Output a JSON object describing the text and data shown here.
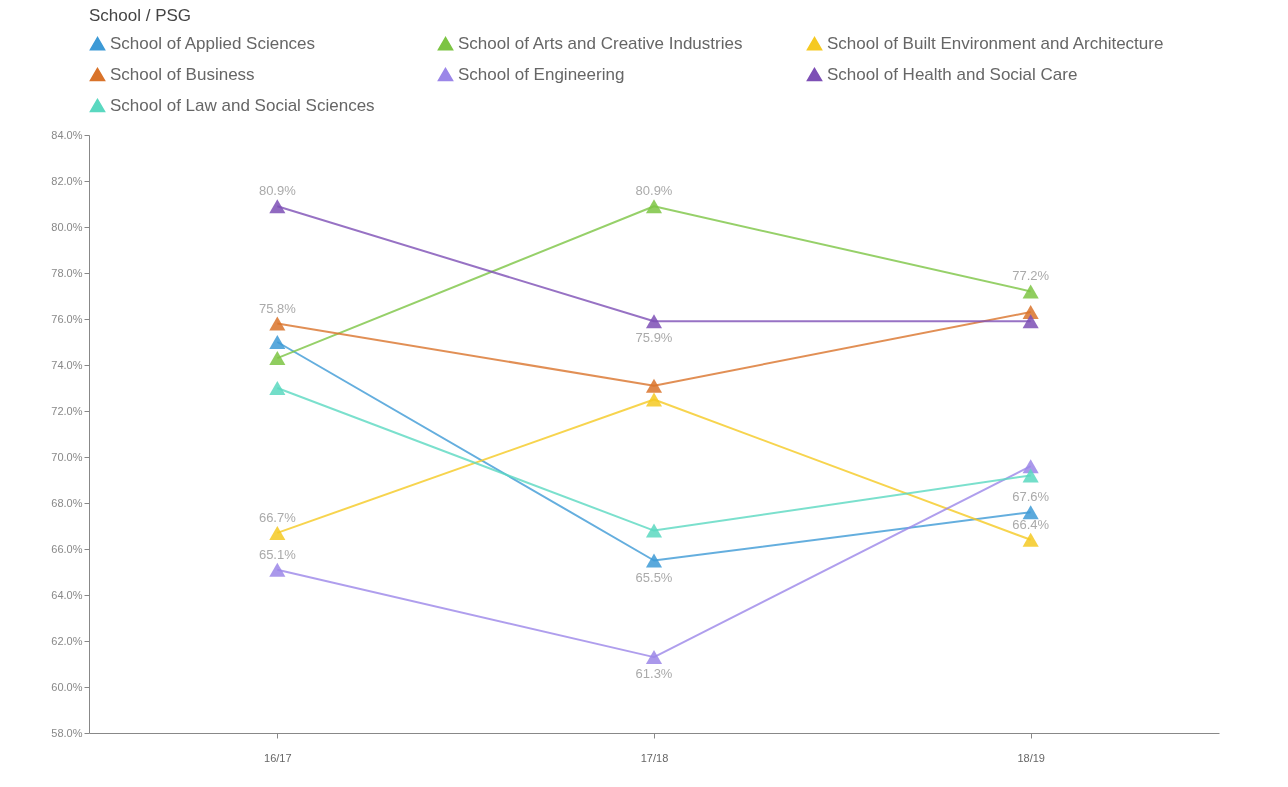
{
  "chart_data": {
    "type": "line",
    "legend_title": "School / PSG",
    "legend": "top",
    "marker": "triangle",
    "grid": false,
    "categories": [
      "16/17",
      "17/18",
      "18/19"
    ],
    "ylim": [
      58,
      84
    ],
    "yticks": [
      {
        "value": 58,
        "label": "58.0%"
      },
      {
        "value": 60,
        "label": "60.0%"
      },
      {
        "value": 62,
        "label": "62.0%"
      },
      {
        "value": 64,
        "label": "64.0%"
      },
      {
        "value": 66,
        "label": "66.0%"
      },
      {
        "value": 68,
        "label": "68.0%"
      },
      {
        "value": 70,
        "label": "70.0%"
      },
      {
        "value": 72,
        "label": "72.0%"
      },
      {
        "value": 74,
        "label": "74.0%"
      },
      {
        "value": 76,
        "label": "76.0%"
      },
      {
        "value": 78,
        "label": "78.0%"
      },
      {
        "value": 80,
        "label": "80.0%"
      },
      {
        "value": 82,
        "label": "82.0%"
      },
      {
        "value": 84,
        "label": "84.0%"
      }
    ],
    "series": [
      {
        "name": "School of Applied Sciences",
        "color": "#3d9ad6",
        "values": [
          75.0,
          65.5,
          67.6
        ],
        "value_labels": [
          null,
          "65.5%",
          "67.6%"
        ]
      },
      {
        "name": "School of Arts and Creative Industries",
        "color": "#7cc443",
        "values": [
          74.3,
          80.9,
          77.2
        ],
        "value_labels": [
          null,
          "80.9%",
          "77.2%"
        ]
      },
      {
        "name": "School of Built Environment and Architecture",
        "color": "#f5c922",
        "values": [
          66.7,
          72.5,
          66.4
        ],
        "value_labels": [
          "66.7%",
          null,
          "66.4%"
        ]
      },
      {
        "name": "School of Business",
        "color": "#d9732a",
        "values": [
          75.8,
          73.1,
          76.3
        ],
        "value_labels": [
          "75.8%",
          null,
          null
        ]
      },
      {
        "name": "School of Engineering",
        "color": "#9b86e8",
        "values": [
          65.1,
          61.3,
          69.6
        ],
        "value_labels": [
          "65.1%",
          "61.3%",
          null
        ]
      },
      {
        "name": "School of Health and Social Care",
        "color": "#7d4fb5",
        "values": [
          80.9,
          75.9,
          75.9
        ],
        "value_labels": [
          "80.9%",
          "75.9%",
          null
        ]
      },
      {
        "name": "School of Law and Social Sciences",
        "color": "#5ad8c0",
        "values": [
          73.0,
          66.8,
          69.2
        ]
      }
    ]
  }
}
